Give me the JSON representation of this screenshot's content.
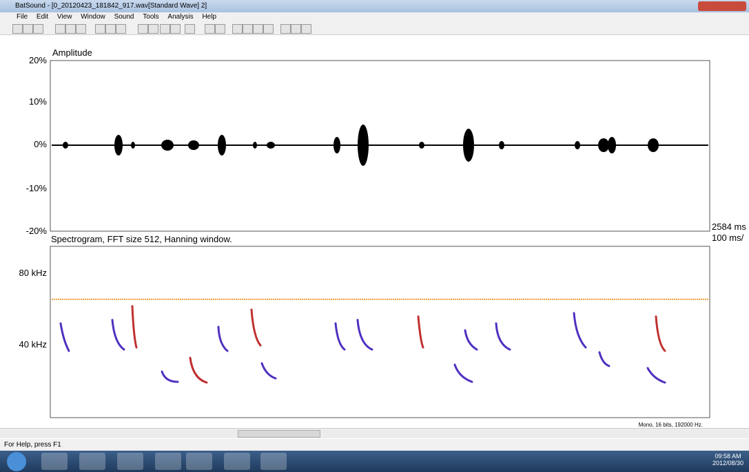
{
  "window_title": "BatSound - [0_20120423_181842_917.wav[Standard Wave] 2]",
  "menu": [
    "File",
    "Edit",
    "View",
    "Window",
    "Sound",
    "Tools",
    "Analysis",
    "Help"
  ],
  "amplitude": {
    "title": "Amplitude",
    "yticks": [
      "20%",
      "10%",
      "0%",
      "-10%",
      "-20%"
    ]
  },
  "time_labels": [
    "2584 ms",
    "100 ms/"
  ],
  "spectrogram": {
    "title": "Spectrogram, FFT size 512, Hanning window.",
    "yticks": [
      "80 kHz",
      "40 kHz"
    ]
  },
  "format_info": "Mono, 16 bits, 192000 Hz.",
  "status": "For Help, press F1",
  "clock": {
    "time": "09:58 AM",
    "date": "2012/08/30"
  }
}
